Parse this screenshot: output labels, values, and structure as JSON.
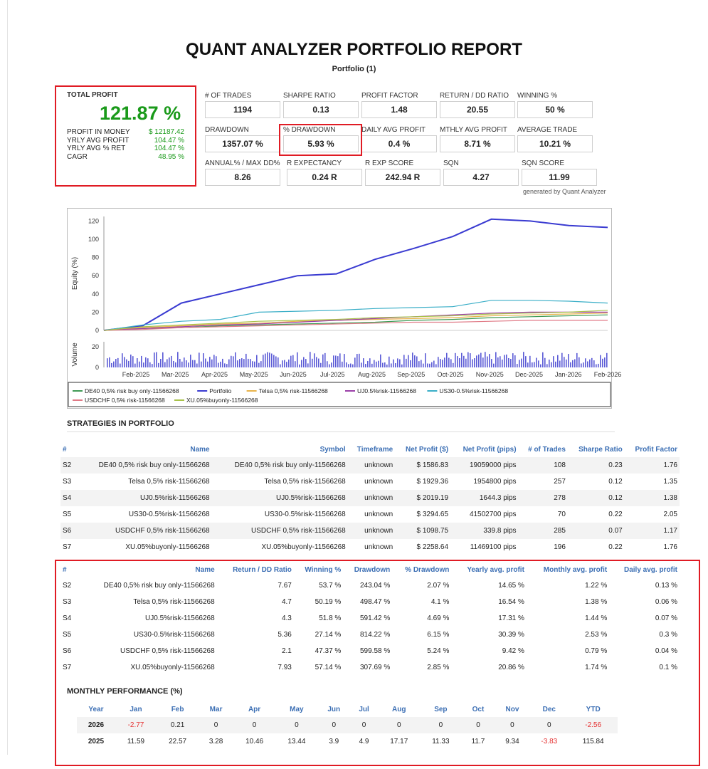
{
  "report": {
    "title": "QUANT ANALYZER PORTFOLIO REPORT",
    "subtitle": "Portfolio (1)",
    "generated_by": "generated by Quant Analyzer"
  },
  "total_profit": {
    "label": "TOTAL PROFIT",
    "value": "121.87 %",
    "rows": [
      {
        "label": "PROFIT IN MONEY",
        "value": "$ 12187.42"
      },
      {
        "label": "YRLY AVG PROFIT",
        "value": "104.47 %"
      },
      {
        "label": "YRLY AVG % RET",
        "value": "104.47 %"
      },
      {
        "label": "CAGR",
        "value": "48.95 %"
      }
    ]
  },
  "stats": [
    {
      "label": "# OF TRADES",
      "value": "1194"
    },
    {
      "label": "SHARPE RATIO",
      "value": "0.13"
    },
    {
      "label": "PROFIT FACTOR",
      "value": "1.48"
    },
    {
      "label": "RETURN / DD RATIO",
      "value": "20.55"
    },
    {
      "label": "WINNING %",
      "value": "50 %"
    },
    {
      "label": "DRAWDOWN",
      "value": "1357.07 %"
    },
    {
      "label": "% DRAWDOWN",
      "value": "5.93 %"
    },
    {
      "label": "DAILY AVG PROFIT",
      "value": "0.4 %"
    },
    {
      "label": "MTHLY AVG PROFIT",
      "value": "8.71 %"
    },
    {
      "label": "AVERAGE TRADE",
      "value": "10.21 %"
    },
    {
      "label": "ANNUAL% / MAX DD%",
      "value": "8.26"
    },
    {
      "label": "R EXPECTANCY",
      "value": "0.24 R"
    },
    {
      "label": "R EXP SCORE",
      "value": "242.94 R"
    },
    {
      "label": "SQN",
      "value": "4.27"
    },
    {
      "label": "SQN SCORE",
      "value": "11.99"
    }
  ],
  "chart_data": {
    "type": "line",
    "ylabel": "Equity (%)",
    "ylabel2": "Volume",
    "ylim": [
      0,
      125
    ],
    "yticks": [
      0,
      20,
      40,
      60,
      80,
      100,
      120
    ],
    "volume_ticks": [
      0,
      20
    ],
    "xticks": [
      "Feb-2025",
      "Mar-2025",
      "Apr-2025",
      "May-2025",
      "Jun-2025",
      "Jul-2025",
      "Aug-2025",
      "Sep-2025",
      "Oct-2025",
      "Nov-2025",
      "Dec-2025",
      "Jan-2026",
      "Feb-2026"
    ],
    "series": [
      {
        "name": "DE40 0,5% risk buy only-11566268",
        "color": "#3f9a55",
        "values": [
          0,
          2,
          3,
          5,
          6,
          7,
          8,
          9,
          11,
          12,
          14,
          15,
          16,
          17
        ]
      },
      {
        "name": "Portfolio",
        "color": "#3a3bd1",
        "values": [
          0,
          5,
          30,
          40,
          50,
          60,
          62,
          78,
          90,
          103,
          122,
          120,
          115,
          113
        ]
      },
      {
        "name": "Telsa 0,5% risk-11566268",
        "color": "#e8b34a",
        "values": [
          0,
          3,
          5,
          7,
          8,
          10,
          11,
          12,
          13,
          14,
          16,
          17,
          18,
          19
        ]
      },
      {
        "name": "UJ0.5%risk-11566268",
        "color": "#9b3fa8",
        "values": [
          0,
          2,
          4,
          6,
          7,
          9,
          11,
          13,
          15,
          17,
          19,
          20,
          20,
          20
        ]
      },
      {
        "name": "US30-0.5%risk-11566268",
        "color": "#3aaec7",
        "values": [
          0,
          6,
          10,
          12,
          20,
          21,
          22,
          24,
          25,
          26,
          33,
          33,
          32,
          30
        ]
      },
      {
        "name": "USDCHF 0,5% risk-11566268",
        "color": "#e07a86",
        "values": [
          0,
          1,
          3,
          4,
          5,
          6,
          7,
          8,
          9,
          9,
          10,
          11,
          11,
          11
        ]
      },
      {
        "name": "XU.05%buyonly-11566268",
        "color": "#a8c24a",
        "values": [
          0,
          4,
          6,
          8,
          10,
          11,
          12,
          14,
          15,
          16,
          18,
          19,
          20,
          22
        ]
      }
    ]
  },
  "strategies": {
    "title": "STRATEGIES IN PORTFOLIO",
    "headers": [
      "#",
      "Name",
      "Symbol",
      "Timeframe",
      "Net Profit ($)",
      "Net Profit (pips)",
      "# of Trades",
      "Sharpe Ratio",
      "Profit Factor"
    ],
    "rows": [
      [
        "S2",
        "DE40 0,5% risk buy only-11566268",
        "DE40 0,5% risk buy only-11566268",
        "unknown",
        "$ 1586.83",
        "19059000 pips",
        "108",
        "0.23",
        "1.76"
      ],
      [
        "S3",
        "Telsa 0,5% risk-11566268",
        "Telsa 0,5% risk-11566268",
        "unknown",
        "$ 1929.36",
        "1954800 pips",
        "257",
        "0.12",
        "1.35"
      ],
      [
        "S4",
        "UJ0.5%risk-11566268",
        "UJ0.5%risk-11566268",
        "unknown",
        "$ 2019.19",
        "1644.3 pips",
        "278",
        "0.12",
        "1.38"
      ],
      [
        "S5",
        "US30-0.5%risk-11566268",
        "US30-0.5%risk-11566268",
        "unknown",
        "$ 3294.65",
        "41502700 pips",
        "70",
        "0.22",
        "2.05"
      ],
      [
        "S6",
        "USDCHF 0,5% risk-11566268",
        "USDCHF 0,5% risk-11566268",
        "unknown",
        "$ 1098.75",
        "339.8 pips",
        "285",
        "0.07",
        "1.17"
      ],
      [
        "S7",
        "XU.05%buyonly-11566268",
        "XU.05%buyonly-11566268",
        "unknown",
        "$ 2258.64",
        "11469100 pips",
        "196",
        "0.22",
        "1.76"
      ]
    ]
  },
  "strategies2": {
    "headers": [
      "#",
      "Name",
      "Return / DD Ratio",
      "Winning %",
      "Drawdown",
      "% Drawdown",
      "Yearly avg. profit",
      "Monthly avg. profit",
      "Daily avg. profit"
    ],
    "rows": [
      [
        "S2",
        "DE40 0,5% risk buy only-11566268",
        "7.67",
        "53.7 %",
        "243.04 %",
        "2.07 %",
        "14.65 %",
        "1.22 %",
        "0.13 %"
      ],
      [
        "S3",
        "Telsa 0,5% risk-11566268",
        "4.7",
        "50.19 %",
        "498.47 %",
        "4.1 %",
        "16.54 %",
        "1.38 %",
        "0.06 %"
      ],
      [
        "S4",
        "UJ0.5%risk-11566268",
        "4.3",
        "51.8 %",
        "591.42 %",
        "4.69 %",
        "17.31 %",
        "1.44 %",
        "0.07 %"
      ],
      [
        "S5",
        "US30-0.5%risk-11566268",
        "5.36",
        "27.14 %",
        "814.22 %",
        "6.15 %",
        "30.39 %",
        "2.53 %",
        "0.3 %"
      ],
      [
        "S6",
        "USDCHF 0,5% risk-11566268",
        "2.1",
        "47.37 %",
        "599.58 %",
        "5.24 %",
        "9.42 %",
        "0.79 %",
        "0.04 %"
      ],
      [
        "S7",
        "XU.05%buyonly-11566268",
        "7.93",
        "57.14 %",
        "307.69 %",
        "2.85 %",
        "20.86 %",
        "1.74 %",
        "0.1 %"
      ]
    ]
  },
  "monthly": {
    "title": "MONTHLY PERFORMANCE (%)",
    "headers": [
      "Year",
      "Jan",
      "Feb",
      "Mar",
      "Apr",
      "May",
      "Jun",
      "Jul",
      "Aug",
      "Sep",
      "Oct",
      "Nov",
      "Dec",
      "YTD"
    ],
    "rows": [
      [
        "2026",
        "-2.77",
        "0.21",
        "0",
        "0",
        "0",
        "0",
        "0",
        "0",
        "0",
        "0",
        "0",
        "0",
        "-2.56"
      ],
      [
        "2025",
        "11.59",
        "22.57",
        "3.28",
        "10.46",
        "13.44",
        "3.9",
        "4.9",
        "17.17",
        "11.33",
        "11.7",
        "9.34",
        "-3.83",
        "115.84"
      ]
    ]
  }
}
